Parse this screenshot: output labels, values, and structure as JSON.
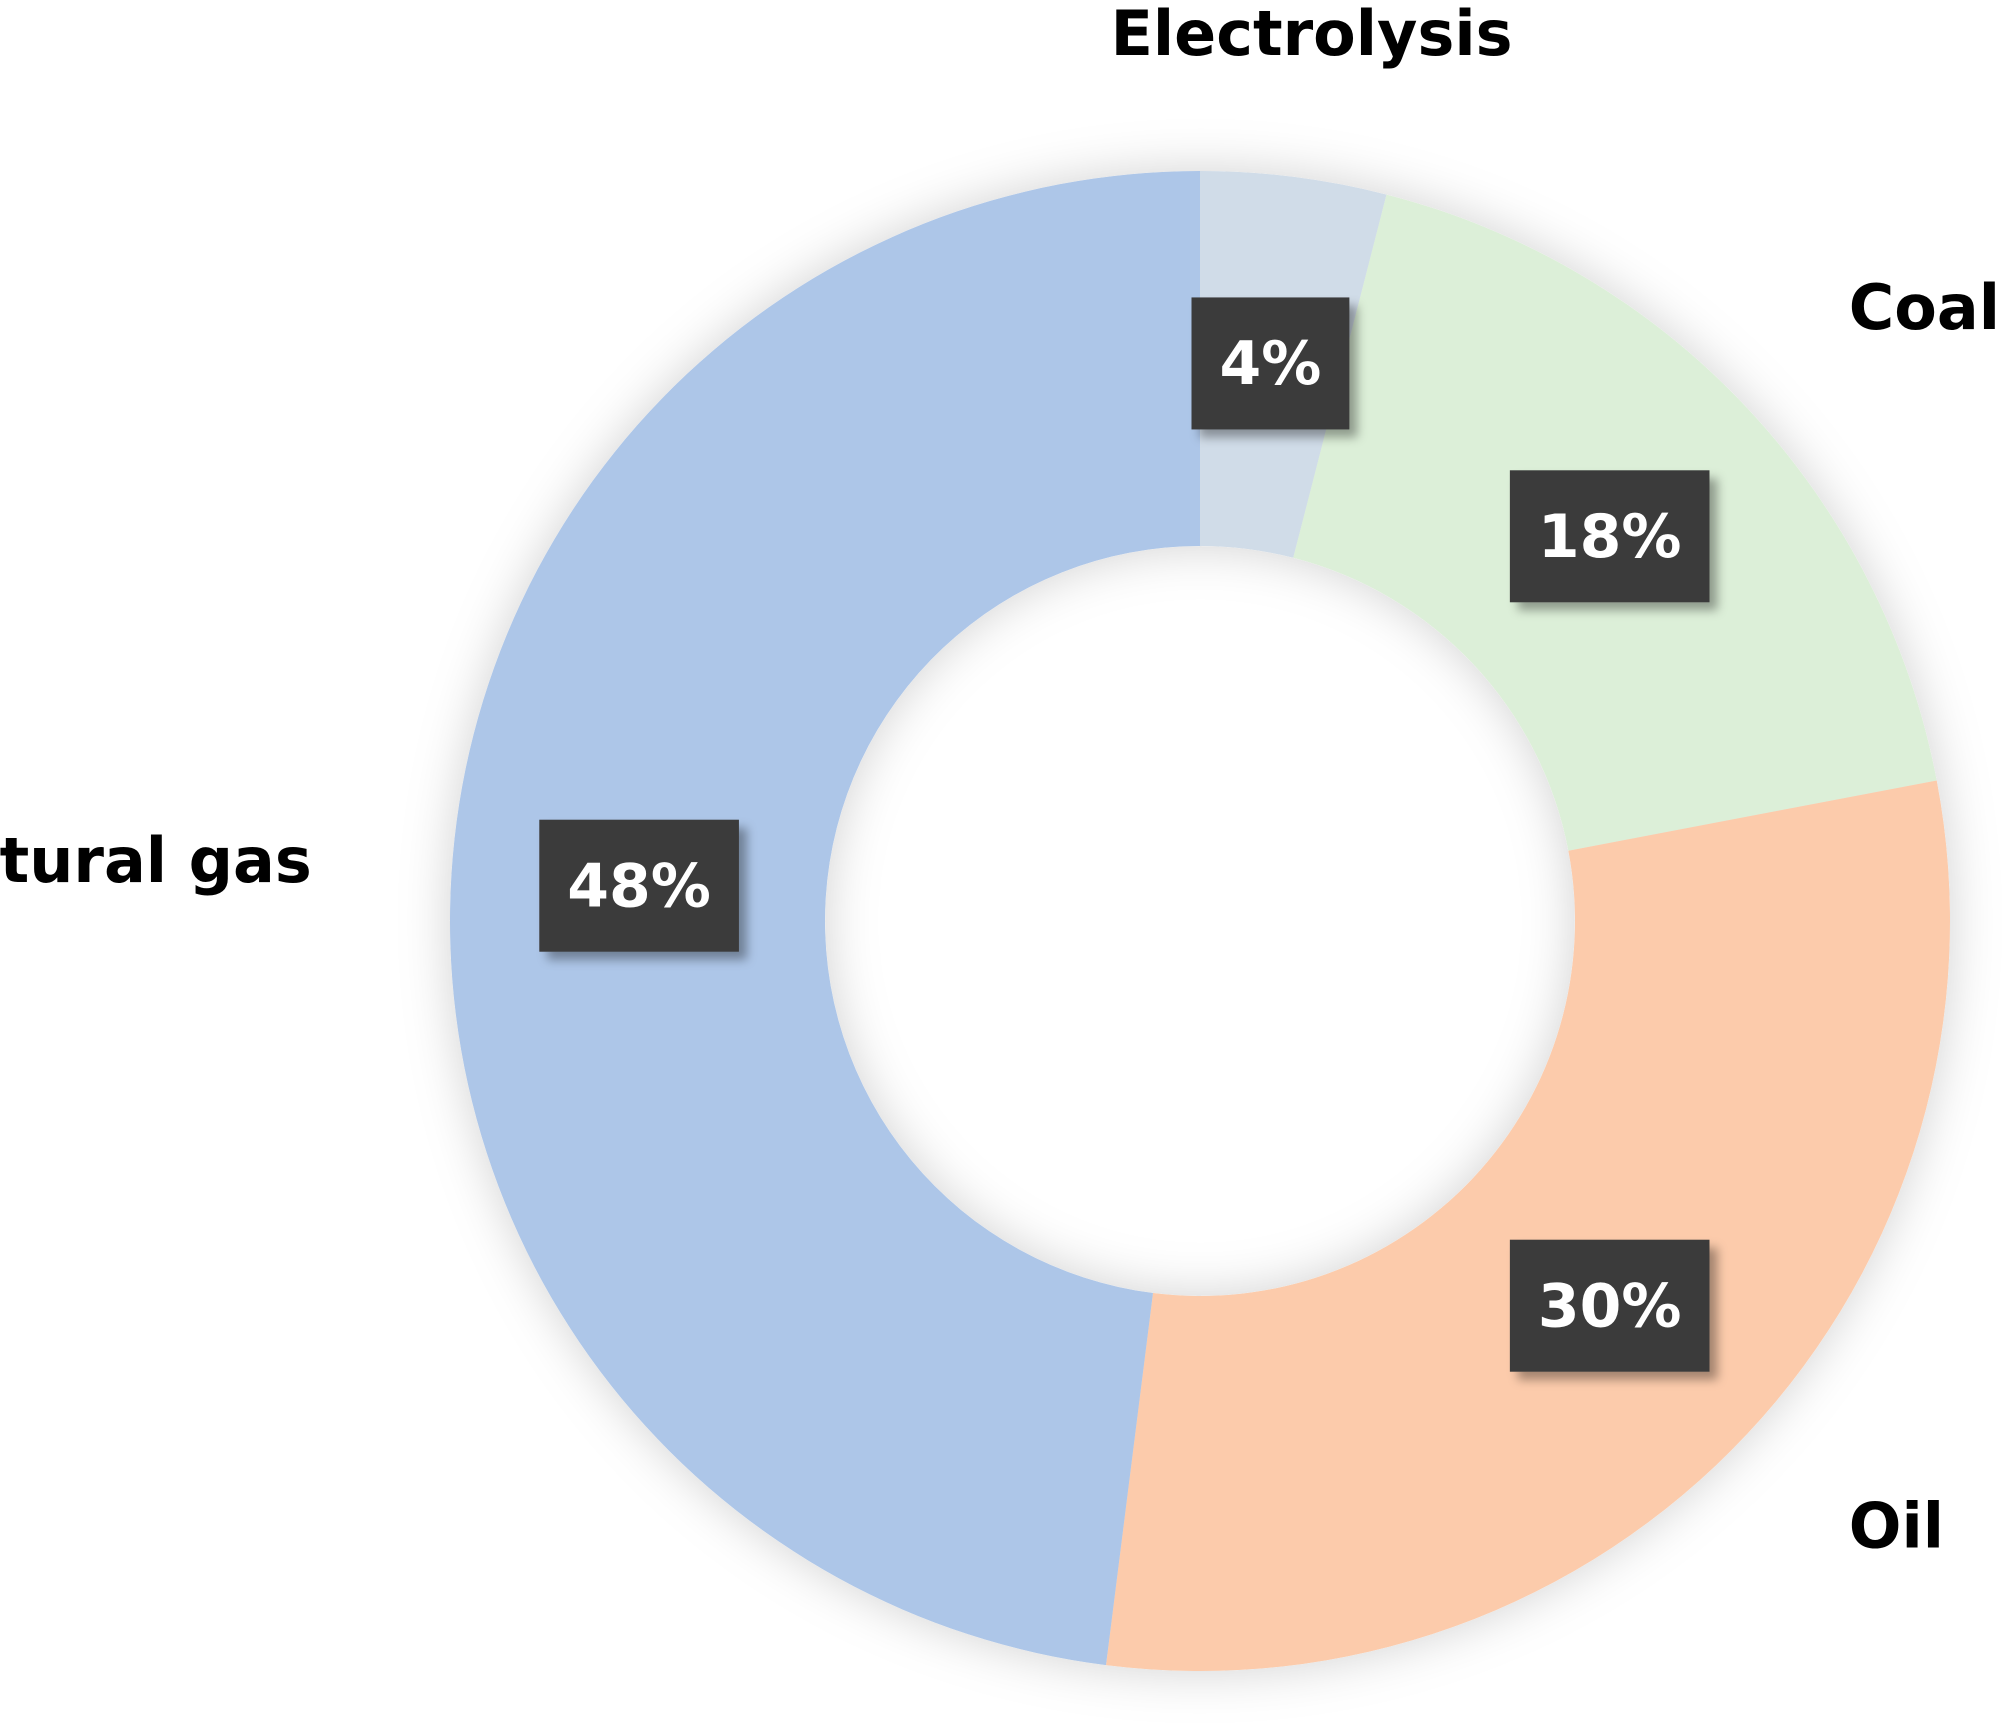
{
  "chart_data": {
    "type": "donut",
    "categories": [
      "Electrolysis",
      "Coal",
      "Oil",
      "Natural gas"
    ],
    "values": [
      4,
      18,
      30,
      48
    ],
    "value_labels": [
      "4%",
      "18%",
      "30%",
      "48%"
    ],
    "colors": [
      "#d0dce8",
      "#dcefd8",
      "#fccbab",
      "#adc6e8"
    ]
  }
}
